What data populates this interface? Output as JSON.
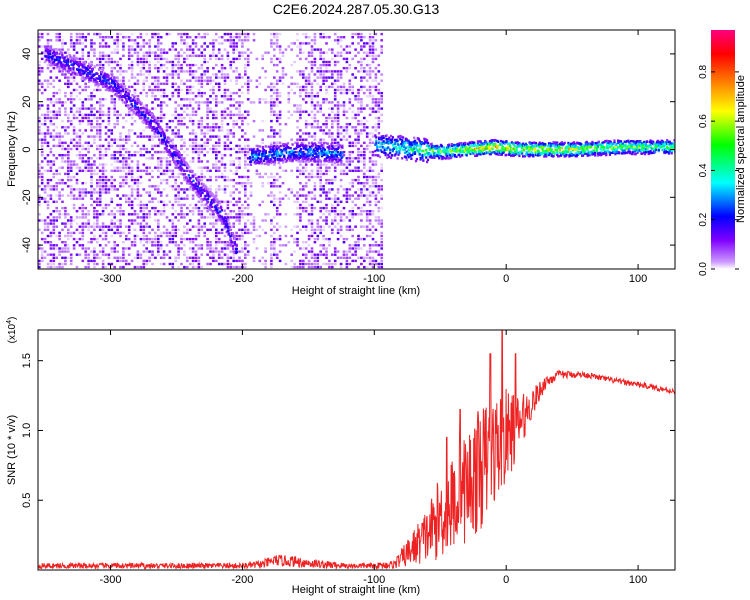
{
  "figure": {
    "title": "C2E6.2024.287.05.30.G13"
  },
  "chart_data": [
    {
      "type": "heatmap",
      "xlabel": "Height of straight line (km)",
      "ylabel": "Frequency (Hz)",
      "xlim": [
        -355,
        128
      ],
      "ylim": [
        -50,
        50
      ],
      "xticks": [
        -300,
        -200,
        -100,
        0,
        100
      ],
      "xtick_labels": [
        "-300",
        "-200",
        "-100",
        "0",
        "100"
      ],
      "yticks": [
        -40,
        -20,
        0,
        20,
        40
      ],
      "ytick_labels": [
        "-40",
        "-20",
        "0",
        "20",
        "40"
      ],
      "colorbar": {
        "label": "Normalized spectral amplitude",
        "range": [
          0,
          0.97
        ],
        "ticks": [
          0.0,
          0.2,
          0.4,
          0.6,
          0.8
        ],
        "tick_labels": [
          "0.0",
          "0.2",
          "0.4",
          "0.6",
          "0.8"
        ],
        "colormap": [
          "#ffffff",
          "#cc99ff",
          "#8000ff",
          "#0000ff",
          "#00ffff",
          "#00ff00",
          "#ffff00",
          "#ff8000",
          "#ff0000",
          "#ff0080"
        ]
      },
      "ridges": [
        {
          "x": [
            -350,
            -300,
            -270,
            -240,
            -215,
            -205
          ],
          "y": [
            40,
            28,
            12,
            -12,
            -28,
            -43
          ],
          "amplitude": 0.25
        },
        {
          "x": [
            -195,
            -180,
            -160,
            -140,
            -125
          ],
          "y": [
            -3,
            -2,
            -1,
            -1,
            -2
          ],
          "amplitude": 0.35
        },
        {
          "x": [
            -100,
            -70,
            -50,
            -30,
            -10,
            10,
            50,
            90,
            128
          ],
          "y": [
            2,
            0,
            -1,
            0,
            1,
            0,
            0,
            1,
            1
          ],
          "amplitude": [
            0.4,
            0.5,
            0.6,
            0.7,
            0.8,
            0.75,
            0.7,
            0.6,
            0.55
          ]
        }
      ],
      "grid": false
    },
    {
      "type": "line",
      "xlabel": "Height of straight line (km)",
      "ylabel": "SNR (10 * v/v)",
      "y_multiplier_label": "(x10",
      "y_multiplier_exp": "4",
      "xlim": [
        -355,
        128
      ],
      "ylim": [
        0,
        1.72
      ],
      "xticks": [
        -300,
        -200,
        -100,
        0,
        100
      ],
      "xtick_labels": [
        "-300",
        "-200",
        "-100",
        "0",
        "100"
      ],
      "yticks": [
        0.5,
        1.0,
        1.5
      ],
      "ytick_labels": [
        "0.5",
        "1.0",
        "1.5"
      ],
      "series": [
        {
          "color": "#ee2222",
          "x": [
            -355,
            -300,
            -250,
            -200,
            -185,
            -175,
            -160,
            -140,
            -120,
            -100,
            -85,
            -75,
            -60,
            -50,
            -40,
            -30,
            -20,
            -10,
            0,
            10,
            20,
            30,
            40,
            60,
            80,
            100,
            128
          ],
          "y": [
            0.03,
            0.03,
            0.03,
            0.03,
            0.04,
            0.07,
            0.06,
            0.04,
            0.03,
            0.03,
            0.04,
            0.12,
            0.25,
            0.38,
            0.48,
            0.6,
            0.72,
            0.85,
            0.95,
            1.05,
            1.2,
            1.35,
            1.4,
            1.4,
            1.36,
            1.33,
            1.28
          ],
          "noise": [
            0.02,
            0.02,
            0.02,
            0.02,
            0.03,
            0.04,
            0.04,
            0.03,
            0.02,
            0.02,
            0.03,
            0.1,
            0.2,
            0.3,
            0.35,
            0.4,
            0.45,
            0.4,
            0.35,
            0.2,
            0.1,
            0.05,
            0.03,
            0.02,
            0.02,
            0.02,
            0.02
          ],
          "spikes": [
            {
              "x": -3,
              "y": 1.72
            },
            {
              "x": -12,
              "y": 1.55
            },
            {
              "x": 7,
              "y": 1.55
            },
            {
              "x": -35,
              "y": 1.15
            },
            {
              "x": -45,
              "y": 0.95
            }
          ]
        }
      ],
      "grid": false
    }
  ]
}
